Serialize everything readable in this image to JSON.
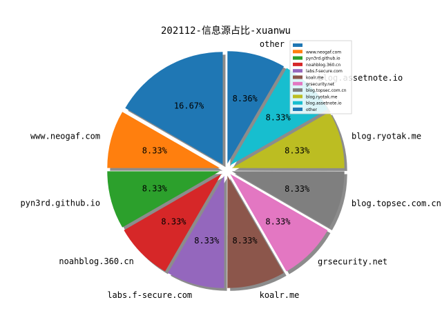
{
  "chart_data": {
    "type": "pie",
    "title": "202112-信息源占比-xuanwu",
    "slices": [
      {
        "outer_label": "",
        "legend_label": "",
        "value": 16.67,
        "pct_label": "16.67%",
        "color": "#1f77b4"
      },
      {
        "outer_label": "www.neogaf.com",
        "legend_label": "www.neogaf.com",
        "value": 8.33,
        "pct_label": "8.33%",
        "color": "#ff7f0e"
      },
      {
        "outer_label": "pyn3rd.github.io",
        "legend_label": "pyn3rd.github.io",
        "value": 8.33,
        "pct_label": "8.33%",
        "color": "#2ca02c"
      },
      {
        "outer_label": "noahblog.360.cn",
        "legend_label": "noahblog.360.cn",
        "value": 8.33,
        "pct_label": "8.33%",
        "color": "#d62728"
      },
      {
        "outer_label": "labs.f-secure.com",
        "legend_label": "labs.f-secure.com",
        "value": 8.33,
        "pct_label": "8.33%",
        "color": "#9467bd"
      },
      {
        "outer_label": "koalr.me",
        "legend_label": "koalr.me",
        "value": 8.33,
        "pct_label": "8.33%",
        "color": "#8c564b"
      },
      {
        "outer_label": "grsecurity.net",
        "legend_label": "grsecurity.net",
        "value": 8.33,
        "pct_label": "8.33%",
        "color": "#e377c2"
      },
      {
        "outer_label": "blog.topsec.com.cn",
        "legend_label": "blog.topsec.com.cn",
        "value": 8.33,
        "pct_label": "8.33%",
        "color": "#7f7f7f"
      },
      {
        "outer_label": "blog.ryotak.me",
        "legend_label": "blog.ryotak.me",
        "value": 8.33,
        "pct_label": "8.33%",
        "color": "#bcbd22"
      },
      {
        "outer_label": "blog.assetnote.io",
        "legend_label": "blog.assetnote.io",
        "value": 8.33,
        "pct_label": "8.33%",
        "color": "#17becf"
      },
      {
        "outer_label": "other",
        "legend_label": "other",
        "value": 8.36,
        "pct_label": "8.36%",
        "color": "#1f77b4"
      }
    ],
    "start_angle_deg": 90,
    "direction": "counterclockwise",
    "exploded": true,
    "shadow": true,
    "legend_position": "top-right"
  }
}
